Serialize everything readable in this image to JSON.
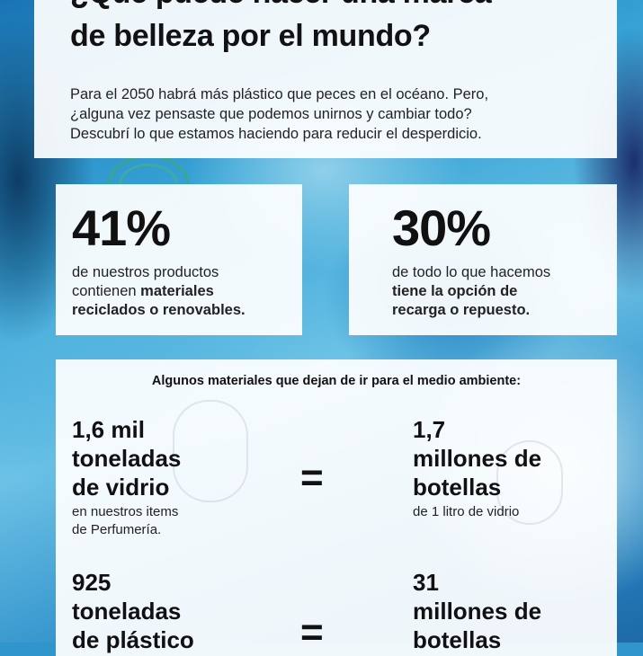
{
  "header": {
    "title_lines": [
      "¿Qué puede hacer una marca",
      "de belleza por el mundo?"
    ],
    "intro_lines": [
      "Para el 2050 habrá más plástico que peces en el océano. Pero,",
      "¿alguna vez pensaste que podemos unirnos y cambiar todo?",
      "Descubrí lo que estamos haciendo para reducir el desperdicio."
    ]
  },
  "stats": [
    {
      "number": "41%",
      "line1": "de nuestros productos",
      "line2_plain": "contienen ",
      "line2_bold": "materiales",
      "line3_bold": "reciclados o renovables."
    },
    {
      "number": "30%",
      "line1": "de todo lo que hacemos",
      "line2_bold": "tiene la opción de",
      "line3_bold": "recarga o repuesto."
    }
  ],
  "materials": {
    "heading": "Algunos materiales que dejan de ir para el medio ambiente:",
    "equals_sign": "=",
    "rows": [
      {
        "left_big": [
          "1,6 mil",
          "toneladas",
          "de vidrio"
        ],
        "left_small": [
          "en nuestros items",
          "de Perfumería."
        ],
        "right_big": [
          "1,7",
          "millones de",
          "botellas"
        ],
        "right_small": [
          "de 1 litro de vidrio"
        ]
      },
      {
        "left_big": [
          "925",
          "toneladas",
          "de plástico"
        ],
        "left_small": [],
        "right_big": [
          "31",
          "millones de",
          "botellas"
        ],
        "right_small": []
      }
    ]
  }
}
